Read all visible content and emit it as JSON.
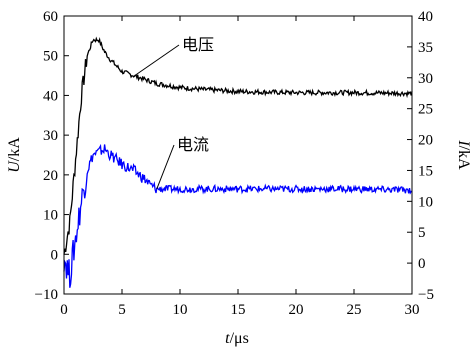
{
  "chart_data": {
    "type": "line",
    "xlabel": {
      "var": "t",
      "unit": "/μs"
    },
    "ylabel_left": {
      "var": "U",
      "unit": "/kA"
    },
    "ylabel_right": {
      "var": "I",
      "unit": "/kA"
    },
    "xlim": [
      0,
      30
    ],
    "ylim_left": [
      -10,
      60
    ],
    "ylim_right": [
      -5,
      40
    ],
    "x_ticks": [
      "0",
      "5",
      "10",
      "15",
      "20",
      "25",
      "30"
    ],
    "y_left_ticks": [
      "−10",
      "0",
      "10",
      "20",
      "30",
      "40",
      "50",
      "60"
    ],
    "y_right_ticks": [
      "−5",
      "0",
      "5",
      "10",
      "15",
      "20",
      "25",
      "30",
      "35",
      "40"
    ],
    "grid": false,
    "series": [
      {
        "name": "电压",
        "axis": "left",
        "color": "#000000",
        "x": [
          0,
          0.5,
          1.0,
          1.5,
          2.0,
          2.5,
          3.0,
          3.5,
          4.0,
          5.0,
          6.0,
          7.0,
          8.0,
          10.0,
          12.0,
          15.0,
          18.0,
          20.0,
          22.0,
          25.0,
          28.0,
          30.0
        ],
        "y": [
          0,
          8,
          24,
          40,
          50,
          54,
          54,
          51,
          49,
          46,
          45,
          44,
          43,
          42,
          41.5,
          41,
          40.8,
          40.7,
          40.7,
          40.7,
          40.6,
          40.5
        ]
      },
      {
        "name": "电流",
        "axis": "right",
        "color": "#0000ff",
        "x": [
          0,
          0.5,
          1.0,
          1.5,
          2.0,
          2.5,
          3.0,
          3.5,
          4.0,
          5.0,
          6.0,
          7.0,
          7.5,
          8.0,
          10.0,
          15.0,
          20.0,
          25.0,
          30.0
        ],
        "y": [
          1,
          -2,
          4,
          10,
          15,
          17.5,
          18,
          18.5,
          17.5,
          16,
          15,
          13.5,
          12.5,
          12,
          12,
          12,
          12,
          12,
          11.8
        ]
      }
    ],
    "annotations": [
      {
        "text": "电压",
        "series": "电压"
      },
      {
        "text": "电流",
        "series": "电流"
      }
    ]
  }
}
